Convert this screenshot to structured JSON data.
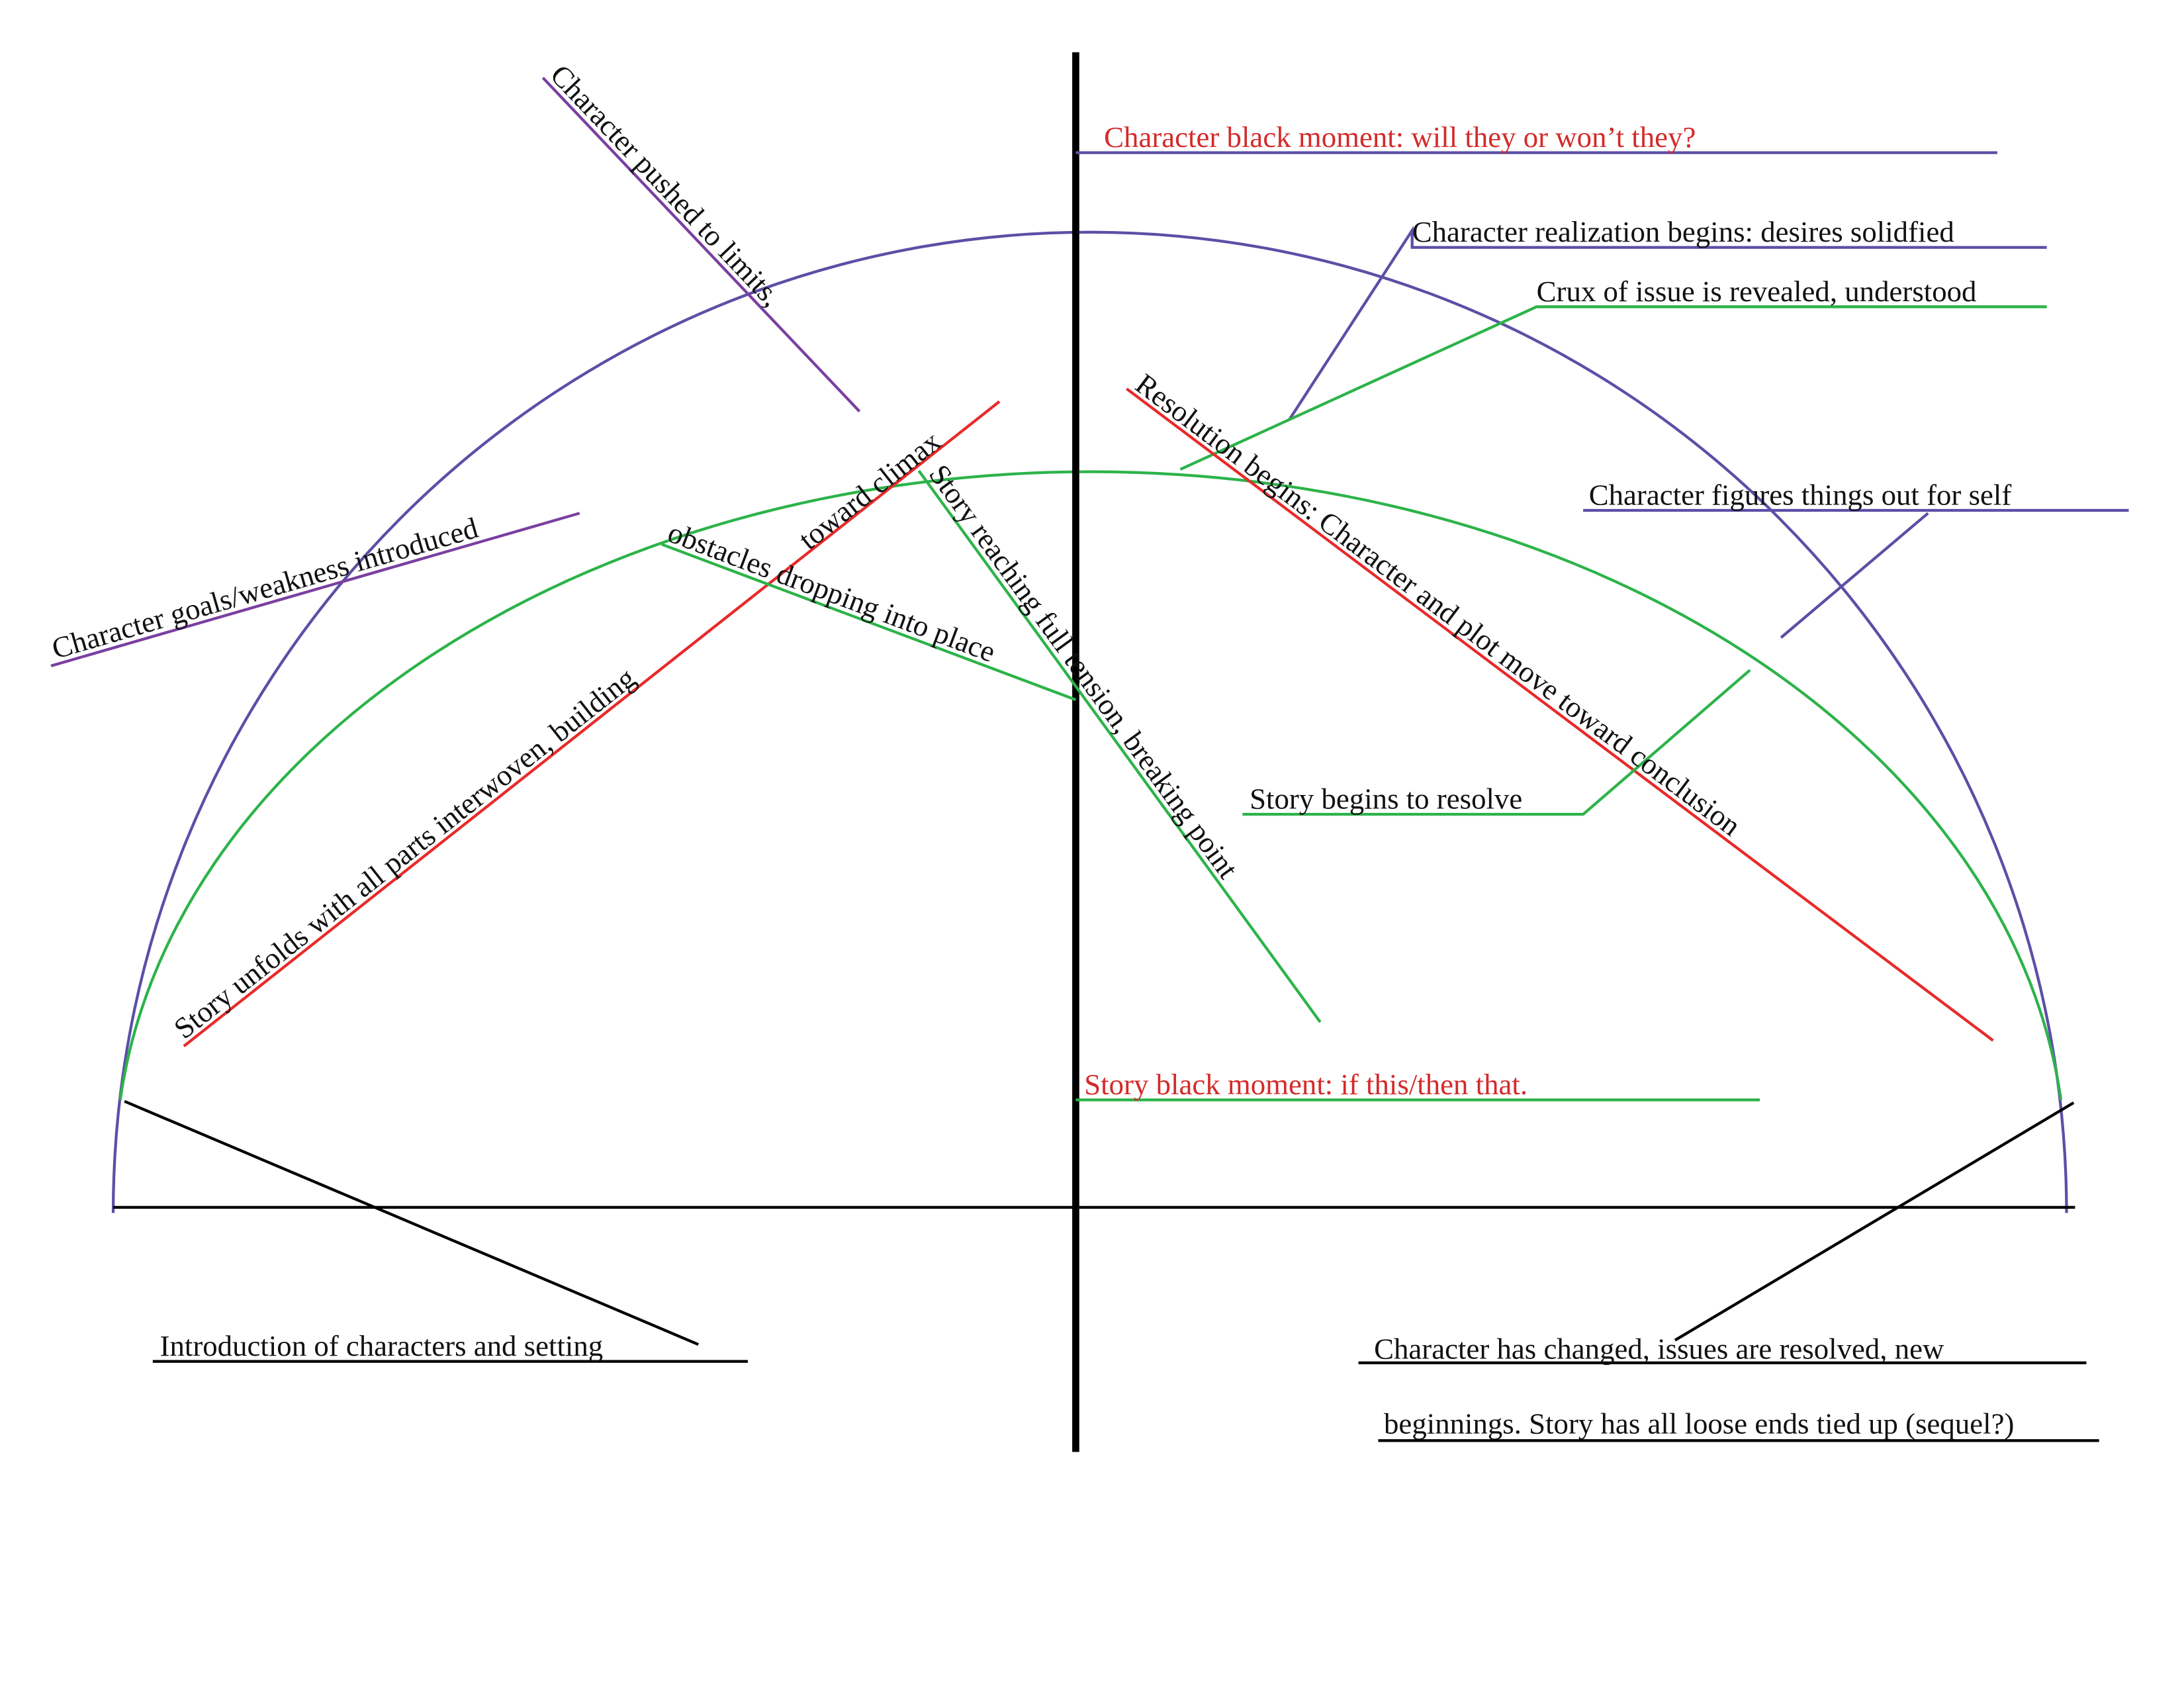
{
  "annotations": [
    {
      "text": "Character pushed to limits,"
    },
    {
      "text": "Character goals/weakness introduced"
    },
    {
      "text": "Story unfolds with all parts interwoven, building"
    },
    {
      "text": "toward climax"
    },
    {
      "text": "obstacles dropping into place"
    },
    {
      "text": "Story reaching full tension, breaking point"
    },
    {
      "text": "Character black moment: will they or won’t they?"
    },
    {
      "text": "Character realization begins: desires solidfied"
    },
    {
      "text": "Crux of issue is revealed, understood"
    },
    {
      "text": "Resolution begins: Character and plot move toward conclusion"
    },
    {
      "text": "Character figures things out for self"
    },
    {
      "text": "Story begins to resolve"
    },
    {
      "text": "Story black moment: if this/then that."
    },
    {
      "text": "Introduction of characters and setting"
    },
    {
      "text": "Character has changed, issues are resolved, new"
    },
    {
      "text": "beginnings. Story has all loose ends tied up (sequel?)"
    }
  ]
}
